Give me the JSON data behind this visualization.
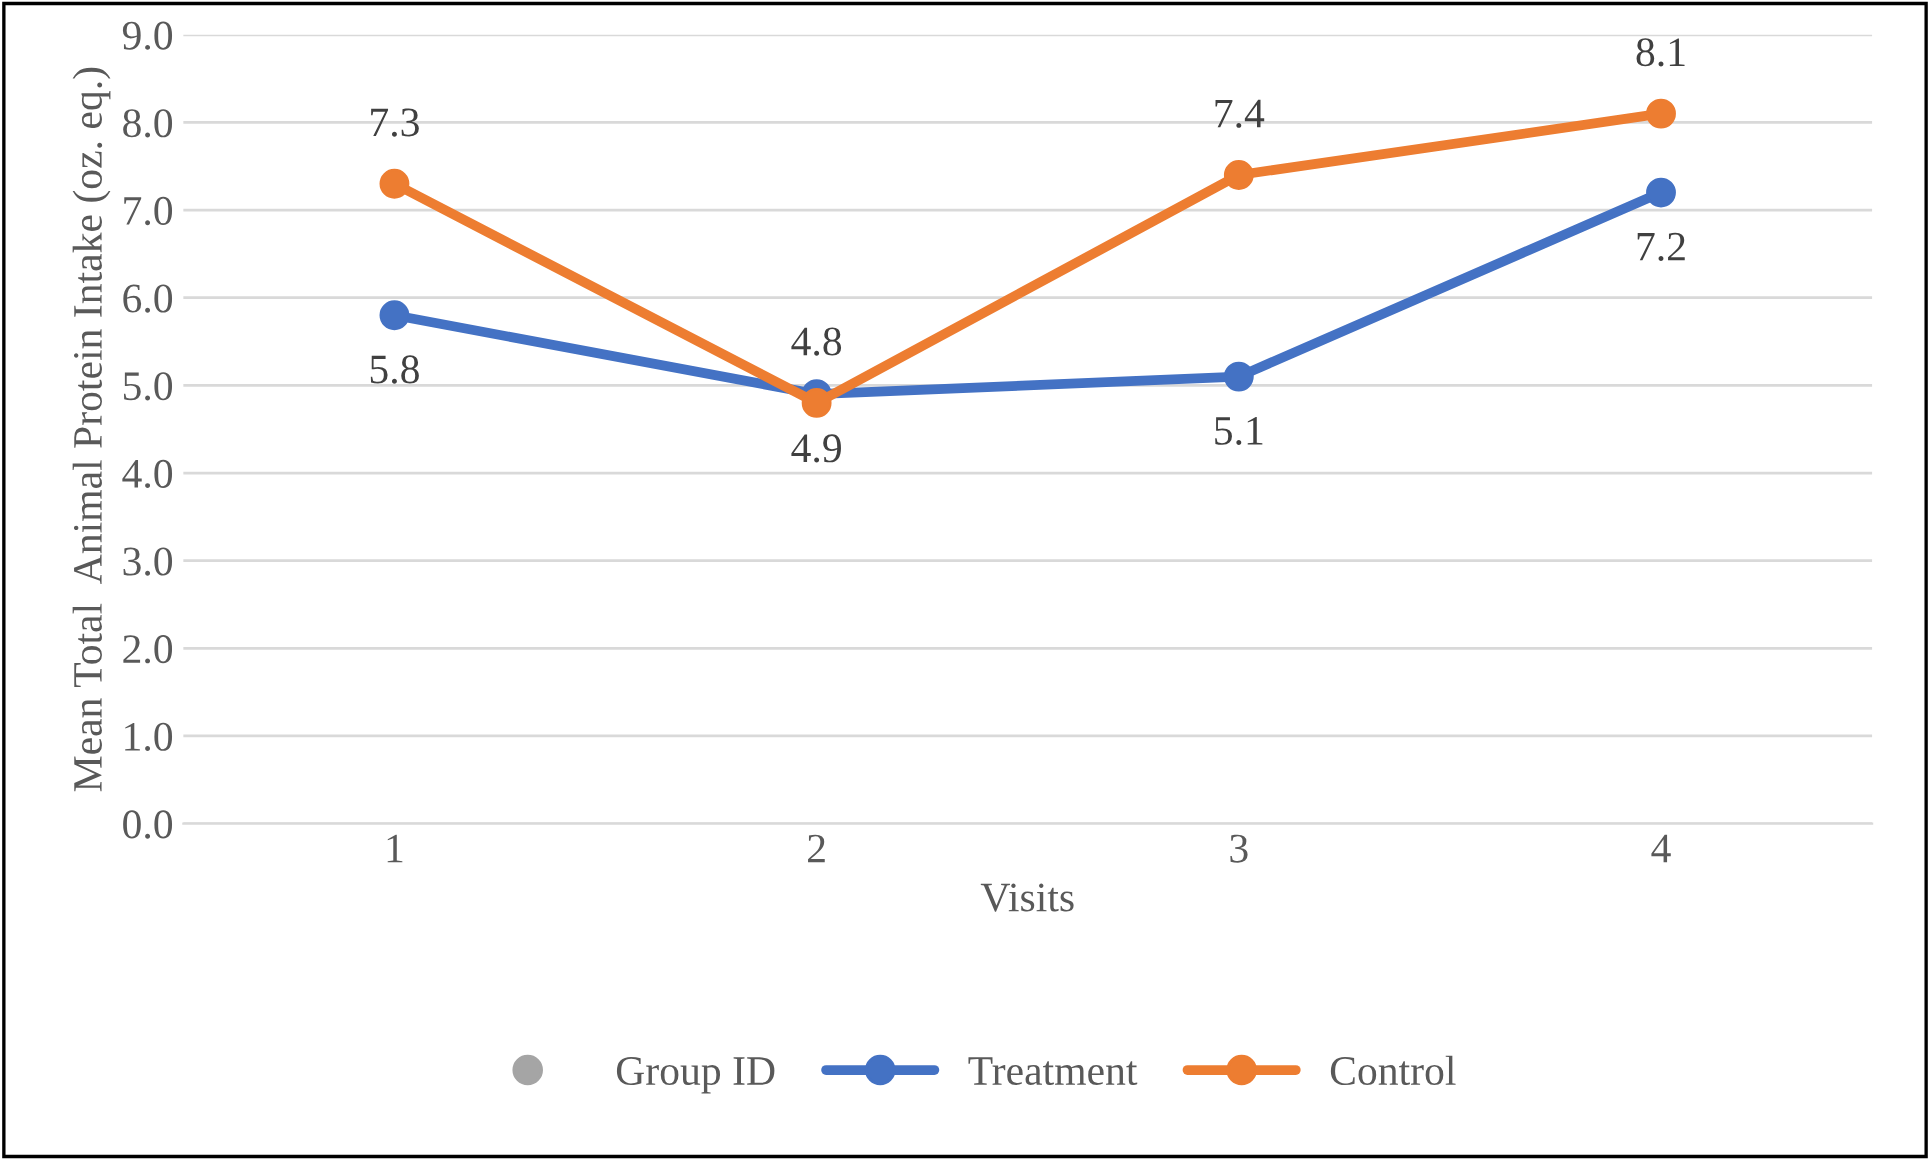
{
  "chart_data": {
    "type": "line",
    "xlabel": "Visits",
    "ylabel": "Mean Total  Animal Protein Intake (oz. eq.)",
    "legend_title": "Group ID",
    "categories": [
      "1",
      "2",
      "3",
      "4"
    ],
    "series": [
      {
        "name": "Treatment",
        "color": "#4472c4",
        "values": [
          5.8,
          4.9,
          5.1,
          7.2
        ]
      },
      {
        "name": "Control",
        "color": "#ed7d31",
        "values": [
          7.3,
          4.8,
          7.4,
          8.1
        ]
      }
    ],
    "ylim": [
      0,
      9
    ],
    "yticks": [
      {
        "value": 0,
        "label": "0.0"
      },
      {
        "value": 1,
        "label": "1.0"
      },
      {
        "value": 2,
        "label": "2.0"
      },
      {
        "value": 3,
        "label": "3.0"
      },
      {
        "value": 4,
        "label": "4.0"
      },
      {
        "value": 5,
        "label": "5.0"
      },
      {
        "value": 6,
        "label": "6.0"
      },
      {
        "value": 7,
        "label": "7.0"
      },
      {
        "value": 8,
        "label": "8.0"
      },
      {
        "value": 9,
        "label": "9.0"
      }
    ],
    "grid": "y",
    "legend": "bottom",
    "marker": "circle",
    "line_style": "solid",
    "data_labels": true
  }
}
